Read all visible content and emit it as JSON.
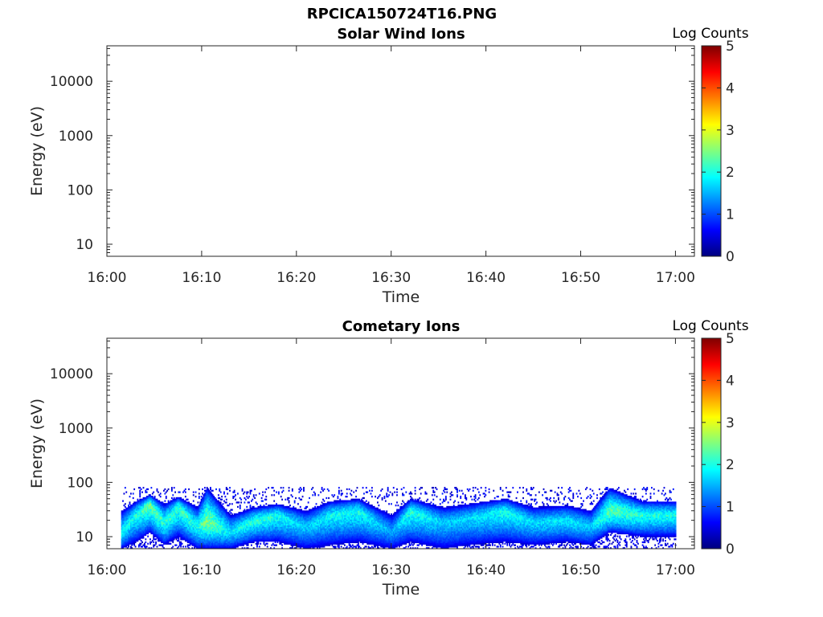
{
  "figure_title": "RPCICA150724T16.PNG",
  "colorbar_colors": [
    "#00007f",
    "#0000ff",
    "#007fff",
    "#00ffff",
    "#7fff7f",
    "#ffff00",
    "#ff7f00",
    "#ff0000",
    "#7f0000"
  ],
  "chart_data": [
    {
      "type": "heatmap",
      "title": "Solar Wind Ions",
      "xlabel": "Time",
      "ylabel": "Energy (eV)",
      "x_ticks": [
        "16:00",
        "16:10",
        "16:20",
        "16:30",
        "16:40",
        "16:50",
        "17:00"
      ],
      "x_range": [
        "16:00",
        "17:02"
      ],
      "y_scale": "log",
      "y_range": [
        6,
        45000
      ],
      "y_ticks": [
        10,
        100,
        1000,
        10000
      ],
      "y_tick_labels": [
        "10",
        "100",
        "1000",
        "10000"
      ],
      "colorbar": {
        "label": "Log Counts",
        "range": [
          0,
          5
        ],
        "ticks": [
          "0",
          "1",
          "2",
          "3",
          "4",
          "5"
        ]
      },
      "data_present": false,
      "bands": []
    },
    {
      "type": "heatmap",
      "title": "Cometary Ions",
      "xlabel": "Time",
      "ylabel": "Energy (eV)",
      "x_ticks": [
        "16:00",
        "16:10",
        "16:20",
        "16:30",
        "16:40",
        "16:50",
        "17:00"
      ],
      "x_range": [
        "16:00",
        "17:02"
      ],
      "y_scale": "log",
      "y_range": [
        6,
        45000
      ],
      "y_ticks": [
        10,
        100,
        1000,
        10000
      ],
      "y_tick_labels": [
        "10",
        "100",
        "1000",
        "10000"
      ],
      "colorbar": {
        "label": "Log Counts",
        "range": [
          0,
          5
        ],
        "ticks": [
          "0",
          "1",
          "2",
          "3",
          "4",
          "5"
        ]
      },
      "data_present": true,
      "data_time_range": [
        "16:01:30",
        "17:00:00"
      ],
      "bands": [
        {
          "t": "16:01:30",
          "e_peak": 12,
          "e_low": 6,
          "e_high": 30,
          "log_counts_peak": 1.7
        },
        {
          "t": "16:03:00",
          "e_peak": 25,
          "e_low": 8,
          "e_high": 45,
          "log_counts_peak": 1.8
        },
        {
          "t": "16:04:30",
          "e_peak": 40,
          "e_low": 12,
          "e_high": 60,
          "log_counts_peak": 2.3
        },
        {
          "t": "16:06:00",
          "e_peak": 18,
          "e_low": 7,
          "e_high": 40,
          "log_counts_peak": 1.9
        },
        {
          "t": "16:07:30",
          "e_peak": 35,
          "e_low": 10,
          "e_high": 55,
          "log_counts_peak": 2.0
        },
        {
          "t": "16:09:30",
          "e_peak": 15,
          "e_low": 6,
          "e_high": 35,
          "log_counts_peak": 1.8
        },
        {
          "t": "16:10:30",
          "e_peak": 20,
          "e_low": 6,
          "e_high": 80,
          "log_counts_peak": 2.4
        },
        {
          "t": "16:13:00",
          "e_peak": 12,
          "e_low": 6,
          "e_high": 25,
          "log_counts_peak": 1.6
        },
        {
          "t": "16:15:30",
          "e_peak": 20,
          "e_low": 8,
          "e_high": 35,
          "log_counts_peak": 1.9
        },
        {
          "t": "16:18:00",
          "e_peak": 25,
          "e_low": 8,
          "e_high": 40,
          "log_counts_peak": 1.8
        },
        {
          "t": "16:21:00",
          "e_peak": 15,
          "e_low": 6,
          "e_high": 30,
          "log_counts_peak": 1.4
        },
        {
          "t": "16:23:30",
          "e_peak": 25,
          "e_low": 7,
          "e_high": 45,
          "log_counts_peak": 1.7
        },
        {
          "t": "16:26:30",
          "e_peak": 30,
          "e_low": 8,
          "e_high": 50,
          "log_counts_peak": 1.8
        },
        {
          "t": "16:30:00",
          "e_peak": 12,
          "e_low": 6,
          "e_high": 25,
          "log_counts_peak": 1.2
        },
        {
          "t": "16:32:00",
          "e_peak": 30,
          "e_low": 8,
          "e_high": 50,
          "log_counts_peak": 1.9
        },
        {
          "t": "16:35:30",
          "e_peak": 18,
          "e_low": 6,
          "e_high": 35,
          "log_counts_peak": 1.4
        },
        {
          "t": "16:38:00",
          "e_peak": 22,
          "e_low": 7,
          "e_high": 40,
          "log_counts_peak": 1.5
        },
        {
          "t": "16:42:00",
          "e_peak": 30,
          "e_low": 8,
          "e_high": 50,
          "log_counts_peak": 1.8
        },
        {
          "t": "16:45:00",
          "e_peak": 18,
          "e_low": 7,
          "e_high": 35,
          "log_counts_peak": 1.5
        },
        {
          "t": "16:48:30",
          "e_peak": 20,
          "e_low": 8,
          "e_high": 38,
          "log_counts_peak": 1.6
        },
        {
          "t": "16:51:00",
          "e_peak": 15,
          "e_low": 7,
          "e_high": 30,
          "log_counts_peak": 1.4
        },
        {
          "t": "16:53:00",
          "e_peak": 30,
          "e_low": 12,
          "e_high": 80,
          "log_counts_peak": 2.2
        },
        {
          "t": "16:56:30",
          "e_peak": 25,
          "e_low": 10,
          "e_high": 45,
          "log_counts_peak": 1.9
        },
        {
          "t": "16:59:30",
          "e_peak": 25,
          "e_low": 10,
          "e_high": 45,
          "log_counts_peak": 1.8
        }
      ]
    }
  ]
}
